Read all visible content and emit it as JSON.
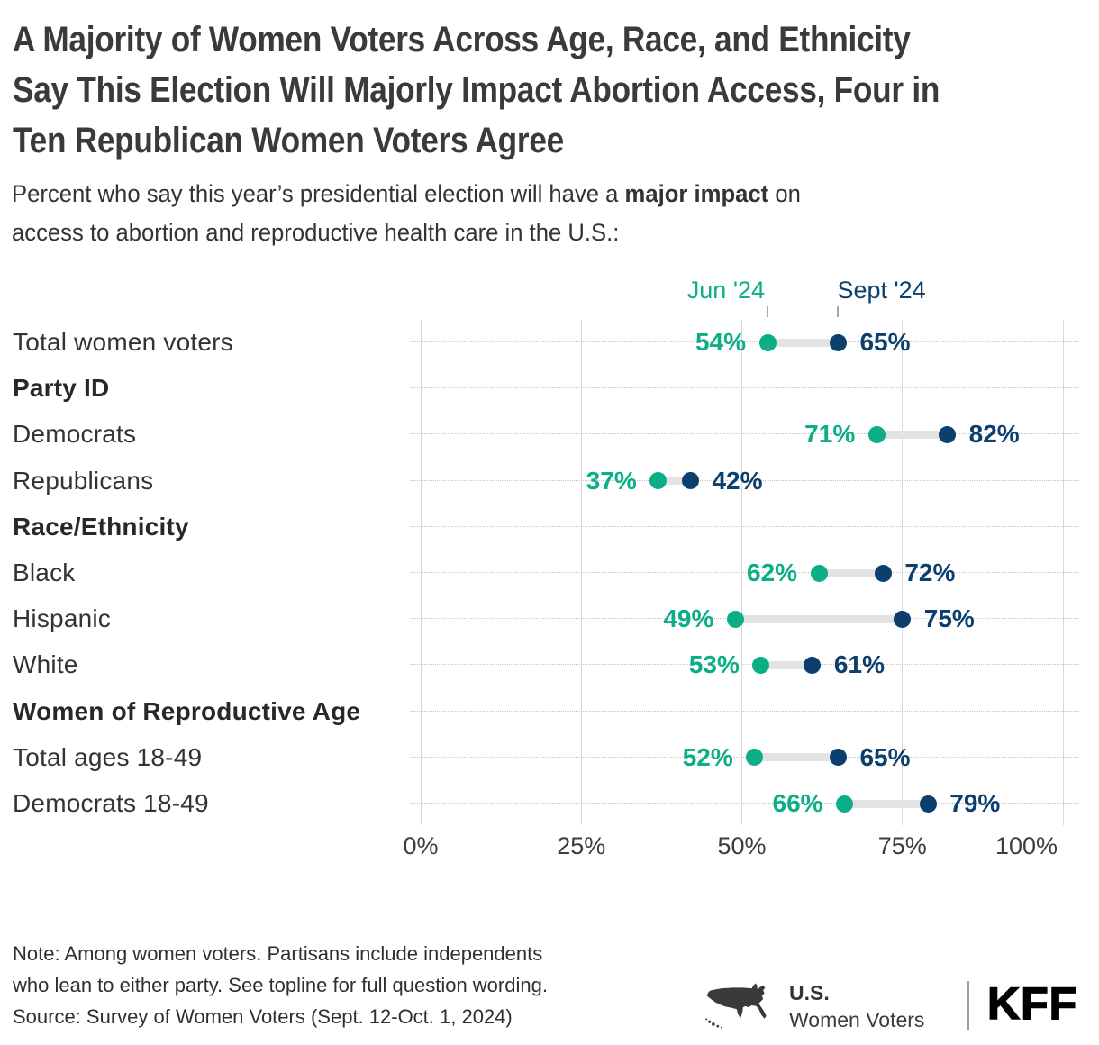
{
  "page": {
    "title_lines": [
      "A Majority of Women Voters Across Age, Race, and Ethnicity",
      "Say This Election Will Majorly Impact Abortion Access, Four in",
      "Ten Republican Women Voters Agree"
    ],
    "subtitle": {
      "line1_prefix": "Percent who say this year’s presidential election will have a ",
      "line1_bold": "major impact",
      "line1_suffix": " on",
      "line2": "access to abortion and reproductive health care in the U.S.:"
    }
  },
  "legend": {
    "jun_label": "Jun '24",
    "sept_label": "Sept '24"
  },
  "colors": {
    "jun": "#0cae87",
    "sept": "#0c3f6e",
    "connector": "#e3e3e3",
    "gridline": "#d9d9d9",
    "dotted": "#c6c6c6",
    "legend_tick": "#a6a6a6"
  },
  "chart_data": {
    "type": "scatter",
    "variant": "dumbbell",
    "title": "A Majority of Women Voters Across Age, Race, and Ethnicity Say This Election Will Majorly Impact Abortion Access, Four in Ten Republican Women Voters Agree",
    "subtitle": "Percent who say this year’s presidential election will have a major impact on access to abortion and reproductive health care in the U.S.:",
    "legend_position": "top",
    "grid": "vertical solid, horizontal dotted per row",
    "xlim": [
      0,
      100
    ],
    "x_ticks": [
      "0%",
      "25%",
      "50%",
      "75%",
      "100%"
    ],
    "x_tick_values": [
      0,
      25,
      50,
      75,
      100
    ],
    "categories": [
      "Total women voters",
      "Democrats",
      "Republicans",
      "Black",
      "Hispanic",
      "White",
      "Total ages 18-49",
      "Democrats 18-49"
    ],
    "series": [
      {
        "name": "Jun '24",
        "color": "#0cae87",
        "values": [
          54,
          71,
          37,
          62,
          49,
          53,
          52,
          66
        ]
      },
      {
        "name": "Sept '24",
        "color": "#0c3f6e",
        "values": [
          65,
          82,
          42,
          72,
          75,
          61,
          65,
          79
        ]
      }
    ],
    "rows": [
      {
        "kind": "data",
        "label": "Total women voters",
        "jun": 54,
        "sept": 65
      },
      {
        "kind": "header",
        "label": "Party ID"
      },
      {
        "kind": "data",
        "label": "Democrats",
        "jun": 71,
        "sept": 82
      },
      {
        "kind": "data",
        "label": "Republicans",
        "jun": 37,
        "sept": 42
      },
      {
        "kind": "header",
        "label": "Race/Ethnicity"
      },
      {
        "kind": "data",
        "label": "Black",
        "jun": 62,
        "sept": 72
      },
      {
        "kind": "data",
        "label": "Hispanic",
        "jun": 49,
        "sept": 75
      },
      {
        "kind": "data",
        "label": "White",
        "jun": 53,
        "sept": 61
      },
      {
        "kind": "header",
        "label": "Women of Reproductive Age"
      },
      {
        "kind": "data",
        "label": "Total ages 18-49",
        "jun": 52,
        "sept": 65
      },
      {
        "kind": "data",
        "label": "Democrats 18-49",
        "jun": 66,
        "sept": 79
      }
    ]
  },
  "note_lines": [
    "Note: Among women voters. Partisans include independents",
    "who lean to either party. See topline for full question wording."
  ],
  "source": "Source: Survey of Women Voters (Sept. 12-Oct. 1, 2024)",
  "footer": {
    "region": "U.S.",
    "audience": "Women Voters",
    "logo": "KFF"
  }
}
